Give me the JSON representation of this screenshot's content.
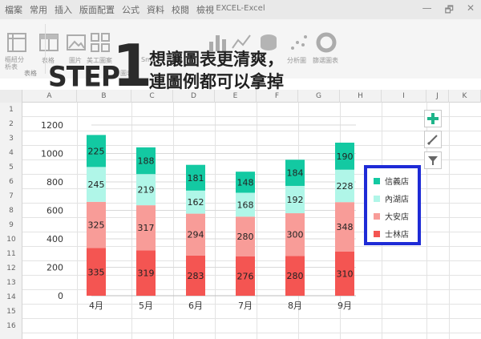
{
  "titlebar": {
    "menu": [
      "檔案",
      "常用",
      "插入",
      "版面配置",
      "公式",
      "資料",
      "校閱",
      "檢視"
    ],
    "doc_title": "EXCEL-Excel",
    "min_label": "—",
    "restore_label": "🗗",
    "close_label": "✕"
  },
  "ribbon": {
    "buttons": [
      "樞紐分析表",
      "表格",
      "圖片",
      "美工圖案",
      "Sm",
      "圖表",
      "分析圖",
      "篩選圖表"
    ],
    "group_label": "表格"
  },
  "step": {
    "word": "STEP",
    "number": "1",
    "line1": "想讓圖表更清爽，",
    "line2": "連圖例都可以拿掉"
  },
  "sheet": {
    "columns": [
      "A",
      "B",
      "C",
      "D",
      "E",
      "F",
      "G",
      "H",
      "I",
      "J",
      "K"
    ],
    "rows": [
      "1",
      "2",
      "3",
      "4",
      "5",
      "6",
      "7",
      "8",
      "9",
      "10",
      "11",
      "12",
      "13",
      "14",
      "15",
      "16"
    ]
  },
  "chart_data": {
    "type": "bar",
    "stacked": true,
    "categories": [
      "4月",
      "5月",
      "6月",
      "7月",
      "8月",
      "9月"
    ],
    "series": [
      {
        "name": "士林店",
        "color": "#f45552",
        "values": [
          335,
          319,
          283,
          276,
          280,
          310
        ]
      },
      {
        "name": "大安店",
        "color": "#f89c98",
        "values": [
          325,
          317,
          294,
          280,
          300,
          348
        ]
      },
      {
        "name": "內湖店",
        "color": "#b0f6e8",
        "values": [
          245,
          219,
          162,
          168,
          192,
          228
        ]
      },
      {
        "name": "信義店",
        "color": "#13c9a2",
        "values": [
          225,
          188,
          181,
          148,
          184,
          190
        ]
      }
    ],
    "yticks": [
      0,
      200,
      400,
      600,
      800,
      1000,
      1200
    ],
    "ylim": [
      0,
      1200
    ],
    "grid": true,
    "legend": "right",
    "legend_order": [
      "信義店",
      "內湖店",
      "大安店",
      "士林店"
    ]
  },
  "side_buttons": [
    "plus-icon",
    "brush-icon",
    "filter-icon"
  ],
  "colors": {
    "legend_border": "#1e2bd6",
    "accent_plus": "#1fb48a"
  }
}
